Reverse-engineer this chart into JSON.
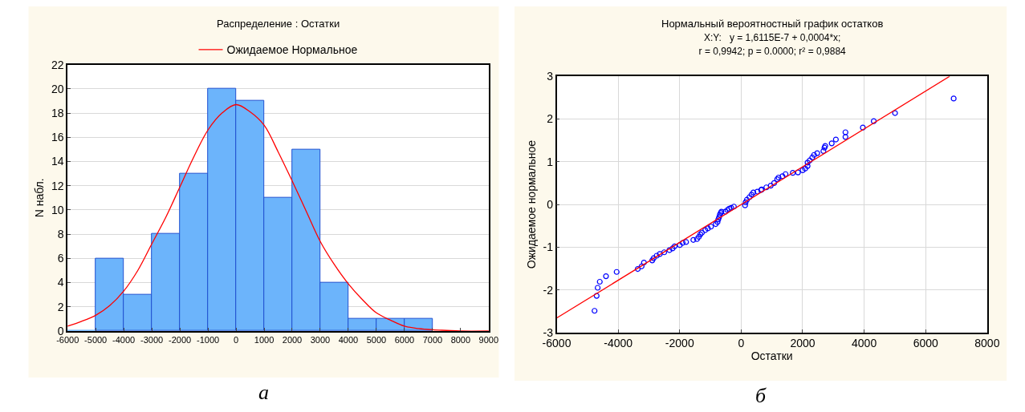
{
  "chart_data": [
    {
      "type": "histogram",
      "title": "Распределение : Остатки",
      "ylabel": "N набл.",
      "bins": [
        -6000,
        -5000,
        -4000,
        -3000,
        -2000,
        -1000,
        0,
        1000,
        2000,
        3000,
        4000,
        5000,
        6000,
        7000
      ],
      "values": [
        0,
        6,
        3,
        8,
        13,
        20,
        19,
        11,
        15,
        4,
        1,
        1,
        1
      ],
      "color": "#6cb4fb",
      "series": [
        {
          "name": "Ожидаемое Нормальное",
          "type": "line",
          "color": "#ff0000",
          "x": [
            -6000,
            -5500,
            -5000,
            -4500,
            -4000,
            -3500,
            -3000,
            -2500,
            -2000,
            -1500,
            -1000,
            -500,
            0,
            500,
            1000,
            1500,
            2000,
            2500,
            3000,
            3500,
            4000,
            4500,
            5000,
            5500,
            6000,
            6500,
            7000,
            7500,
            8000,
            9000
          ],
          "values": [
            0.4,
            0.8,
            1.3,
            2.1,
            3.3,
            5.0,
            7.2,
            9.4,
            11.9,
            14.4,
            16.6,
            18.0,
            18.7,
            18.1,
            17.0,
            14.8,
            12.4,
            9.9,
            7.4,
            5.5,
            3.9,
            2.6,
            1.5,
            0.9,
            0.4,
            0.2,
            0.1,
            0.05,
            0,
            0
          ]
        }
      ],
      "xlim": [
        -6000,
        9000
      ],
      "xticks": [
        -6000,
        -5000,
        -4000,
        -3000,
        -2000,
        -1000,
        0,
        1000,
        2000,
        3000,
        4000,
        5000,
        6000,
        7000,
        8000,
        9000
      ],
      "ylim": [
        0,
        22
      ],
      "yticks": [
        0,
        2,
        4,
        6,
        8,
        10,
        12,
        14,
        16,
        18,
        20,
        22
      ],
      "grid": "y",
      "legend": "top",
      "line_style": "solid",
      "annotations": [
        "а"
      ]
    },
    {
      "type": "scatter",
      "title": "Нормальный вероятностный график остатков",
      "subtitle": "X:Y:   y = 1,6115E-7 + 0,0004*x;\nr = 0,9942; p = 0.0000; r² = 0,9884",
      "xlabel": "Остатки",
      "ylabel": "Ожидаемое нормальное",
      "series": [
        {
          "type": "scatter",
          "color": "#0000ff",
          "marker": "circle",
          "x": [
            -4768,
            -4700,
            -4666,
            -4598,
            -4396,
            -4049,
            -3364,
            -3238,
            -3161,
            -2891,
            -2849,
            -2747,
            -2646,
            -2502,
            -2333,
            -2232,
            -2164,
            -1995,
            -1902,
            -1792,
            -1555,
            -1437,
            -1378,
            -1327,
            -1276,
            -1167,
            -1082,
            -981,
            -828,
            -769,
            -744,
            -718,
            -693,
            -668,
            -642,
            -516,
            -448,
            -389,
            -321,
            -237,
            127,
            144,
            186,
            270,
            338,
            397,
            524,
            651,
            667,
            819,
            962,
            1072,
            1173,
            1215,
            1342,
            1443,
            1679,
            1848,
            2000,
            2084,
            2160,
            2160,
            2228,
            2312,
            2371,
            2473,
            2675,
            2709,
            2734,
            2945,
            3080,
            3392,
            3392,
            3958,
            4312,
            5004,
            6911
          ],
          "values": [
            -2.49,
            -2.14,
            -1.95,
            -1.81,
            -1.68,
            -1.58,
            -1.51,
            -1.45,
            -1.36,
            -1.31,
            -1.26,
            -1.2,
            -1.16,
            -1.12,
            -1.07,
            -1.03,
            -0.98,
            -0.95,
            -0.9,
            -0.88,
            -0.83,
            -0.81,
            -0.76,
            -0.7,
            -0.66,
            -0.6,
            -0.56,
            -0.52,
            -0.46,
            -0.41,
            -0.35,
            -0.3,
            -0.24,
            -0.2,
            -0.17,
            -0.17,
            -0.13,
            -0.1,
            -0.08,
            -0.05,
            -0.02,
            0.05,
            0.11,
            0.17,
            0.23,
            0.28,
            0.3,
            0.34,
            0.35,
            0.4,
            0.44,
            0.5,
            0.59,
            0.63,
            0.66,
            0.71,
            0.74,
            0.75,
            0.8,
            0.84,
            0.9,
            0.98,
            1.03,
            1.1,
            1.16,
            1.2,
            1.25,
            1.33,
            1.37,
            1.43,
            1.52,
            1.58,
            1.69,
            1.8,
            1.95,
            2.14,
            2.48
          ]
        },
        {
          "type": "line",
          "color": "#ff0000",
          "x": [
            -6000,
            6780
          ],
          "values": [
            -2.66,
            3
          ]
        }
      ],
      "xlim": [
        -6000,
        8000
      ],
      "xticks": [
        -6000,
        -4000,
        -2000,
        0,
        2000,
        4000,
        6000,
        8000
      ],
      "ylim": [
        -3,
        3
      ],
      "yticks": [
        -3,
        -2,
        -1,
        0,
        1,
        2,
        3
      ],
      "grid": true,
      "annotations": [
        "б"
      ]
    }
  ]
}
